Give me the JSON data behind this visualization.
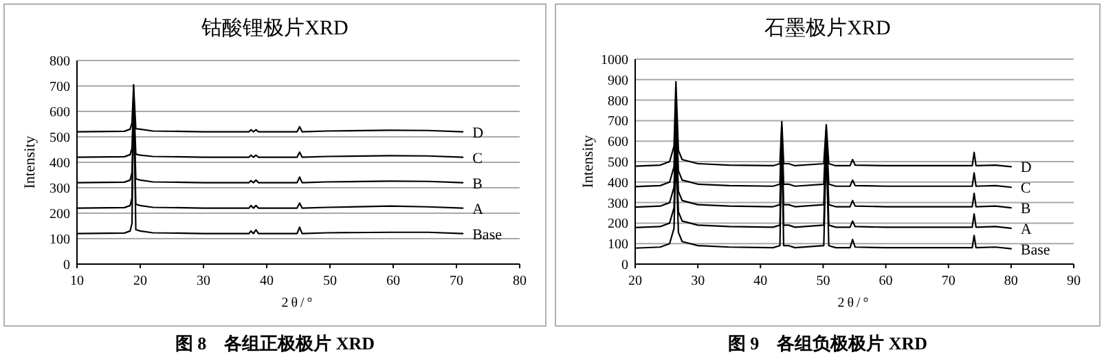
{
  "chart_data": [
    {
      "type": "line",
      "title": "钴酸锂极片XRD",
      "xlabel": "2θ/°",
      "ylabel": "Intensity",
      "xlim": [
        10,
        80
      ],
      "xticks": [
        10,
        20,
        30,
        40,
        50,
        60,
        70,
        80
      ],
      "ylim": [
        0,
        800
      ],
      "yticks": [
        0,
        100,
        200,
        300,
        400,
        500,
        600,
        700,
        800
      ],
      "grid": "y",
      "annotations": [
        "图 8　各组正极极片 XRD"
      ],
      "series": [
        {
          "name": "Base",
          "color": "#000000",
          "x": [
            10,
            17.5,
            18.4,
            18.7,
            18.95,
            19.3,
            20,
            22,
            30,
            37.2,
            37.5,
            37.9,
            38.3,
            38.7,
            44.8,
            45.2,
            45.6,
            49.5,
            59.5,
            65.5,
            71
          ],
          "values": [
            120,
            122,
            130,
            160,
            705,
            135,
            130,
            123,
            120,
            120,
            130,
            120,
            135,
            120,
            120,
            145,
            120,
            123,
            125,
            125,
            120
          ]
        },
        {
          "name": "A",
          "color": "#000000",
          "x": [
            10,
            17.5,
            18.4,
            18.7,
            18.95,
            19.3,
            20,
            22,
            30,
            37.2,
            37.5,
            37.9,
            38.3,
            38.7,
            44.8,
            45.2,
            45.6,
            49.5,
            59.5,
            65.5,
            71
          ],
          "values": [
            220,
            222,
            230,
            260,
            620,
            235,
            230,
            223,
            220,
            220,
            230,
            220,
            230,
            220,
            220,
            240,
            220,
            223,
            228,
            225,
            220
          ]
        },
        {
          "name": "B",
          "color": "#000000",
          "x": [
            10,
            17.5,
            18.4,
            18.7,
            18.95,
            19.3,
            20,
            22,
            30,
            37.2,
            37.5,
            37.9,
            38.3,
            38.7,
            44.8,
            45.2,
            45.6,
            49.5,
            59.5,
            65.5,
            71
          ],
          "values": [
            320,
            322,
            330,
            360,
            640,
            335,
            330,
            323,
            320,
            320,
            328,
            320,
            330,
            320,
            320,
            342,
            320,
            323,
            326,
            325,
            320
          ]
        },
        {
          "name": "C",
          "color": "#000000",
          "x": [
            10,
            17.5,
            18.4,
            18.7,
            18.95,
            19.3,
            20,
            22,
            30,
            37.2,
            37.5,
            37.9,
            38.3,
            38.7,
            44.8,
            45.2,
            45.6,
            49.5,
            59.5,
            65.5,
            71
          ],
          "values": [
            420,
            422,
            430,
            455,
            660,
            432,
            428,
            423,
            420,
            420,
            428,
            420,
            428,
            420,
            420,
            440,
            420,
            423,
            426,
            425,
            420
          ]
        },
        {
          "name": "D",
          "color": "#000000",
          "x": [
            10,
            17.5,
            18.4,
            18.7,
            18.95,
            19.3,
            20,
            22,
            30,
            37.2,
            37.5,
            37.9,
            38.3,
            38.7,
            44.8,
            45.2,
            45.6,
            49.5,
            59.5,
            65.5,
            71
          ],
          "values": [
            520,
            522,
            530,
            555,
            700,
            532,
            530,
            523,
            520,
            520,
            528,
            520,
            528,
            520,
            520,
            540,
            520,
            523,
            526,
            525,
            520
          ]
        }
      ]
    },
    {
      "type": "line",
      "title": "石墨极片XRD",
      "xlabel": "2θ/°",
      "ylabel": "Intensity",
      "xlim": [
        20,
        90
      ],
      "xticks": [
        20,
        30,
        40,
        50,
        60,
        70,
        80,
        90
      ],
      "ylim": [
        0,
        1000
      ],
      "yticks": [
        0,
        100,
        200,
        300,
        400,
        500,
        600,
        700,
        800,
        900,
        1000
      ],
      "grid": "y",
      "annotations": [
        "图 9　各组负极极片 XRD"
      ],
      "series": [
        {
          "name": "Base",
          "color": "#000000",
          "x": [
            20,
            24,
            25.5,
            26.2,
            26.5,
            26.9,
            27.5,
            30,
            35,
            42,
            43.1,
            43.4,
            43.7,
            44.5,
            45.5,
            50.1,
            50.5,
            50.9,
            52,
            54.3,
            54.7,
            55.1,
            60,
            73.8,
            74.1,
            74.4,
            77.5,
            80
          ],
          "values": [
            78,
            83,
            100,
            175,
            540,
            155,
            110,
            90,
            83,
            80,
            90,
            600,
            90,
            90,
            80,
            90,
            580,
            90,
            80,
            80,
            120,
            83,
            80,
            80,
            140,
            80,
            83,
            75
          ]
        },
        {
          "name": "A",
          "color": "#000000",
          "x": [
            20,
            24,
            25.5,
            26.2,
            26.5,
            26.9,
            27.5,
            30,
            35,
            42,
            43.1,
            43.4,
            43.7,
            44.5,
            45.5,
            50.1,
            50.5,
            50.9,
            52,
            54.3,
            54.7,
            55.1,
            60,
            73.8,
            74.1,
            74.4,
            77.5,
            80
          ],
          "values": [
            178,
            183,
            200,
            275,
            600,
            255,
            210,
            190,
            183,
            180,
            190,
            630,
            190,
            190,
            180,
            190,
            610,
            190,
            180,
            180,
            210,
            183,
            180,
            180,
            245,
            180,
            183,
            175
          ]
        },
        {
          "name": "B",
          "color": "#000000",
          "x": [
            20,
            24,
            25.5,
            26.2,
            26.5,
            26.9,
            27.5,
            30,
            35,
            42,
            43.1,
            43.4,
            43.7,
            44.5,
            45.5,
            50.1,
            50.5,
            50.9,
            52,
            54.3,
            54.7,
            55.1,
            60,
            73.8,
            74.1,
            74.4,
            77.5,
            80
          ],
          "values": [
            278,
            283,
            300,
            375,
            690,
            355,
            310,
            290,
            283,
            280,
            290,
            650,
            290,
            290,
            280,
            290,
            630,
            290,
            280,
            280,
            310,
            283,
            280,
            280,
            345,
            280,
            283,
            275
          ]
        },
        {
          "name": "C",
          "color": "#000000",
          "x": [
            20,
            24,
            25.5,
            26.2,
            26.5,
            26.9,
            27.5,
            30,
            35,
            42,
            43.1,
            43.4,
            43.7,
            44.5,
            45.5,
            50.1,
            50.5,
            50.9,
            52,
            54.3,
            54.7,
            55.1,
            60,
            73.8,
            74.1,
            74.4,
            77.5,
            80
          ],
          "values": [
            378,
            383,
            400,
            475,
            790,
            455,
            410,
            390,
            383,
            380,
            390,
            670,
            390,
            390,
            380,
            390,
            655,
            390,
            380,
            380,
            410,
            383,
            380,
            380,
            445,
            380,
            383,
            375
          ]
        },
        {
          "name": "D",
          "color": "#000000",
          "x": [
            20,
            24,
            25.5,
            26.2,
            26.5,
            26.9,
            27.5,
            30,
            35,
            42,
            43.1,
            43.4,
            43.7,
            44.5,
            45.5,
            50.1,
            50.5,
            50.9,
            52,
            54.3,
            54.7,
            55.1,
            60,
            73.8,
            74.1,
            74.4,
            77.5,
            80
          ],
          "values": [
            478,
            483,
            500,
            575,
            890,
            555,
            510,
            490,
            483,
            480,
            490,
            695,
            490,
            490,
            480,
            490,
            680,
            490,
            480,
            480,
            510,
            483,
            480,
            480,
            545,
            480,
            483,
            475
          ]
        }
      ]
    }
  ]
}
